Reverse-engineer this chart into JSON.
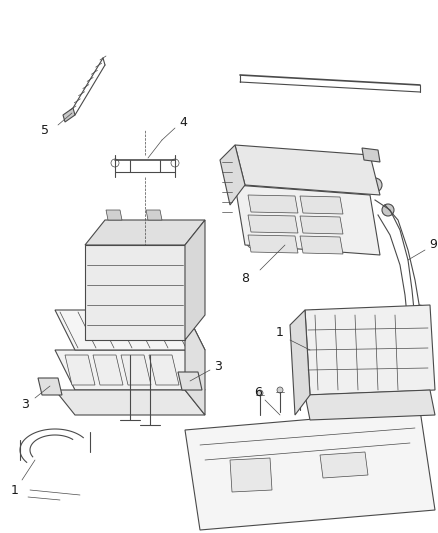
{
  "bg_color": "#ffffff",
  "line_color": "#4a4a4a",
  "label_color": "#1a1a1a",
  "figsize": [
    4.38,
    5.33
  ],
  "dpi": 100,
  "lw_main": 0.8,
  "lw_thin": 0.5,
  "lw_thick": 1.2
}
